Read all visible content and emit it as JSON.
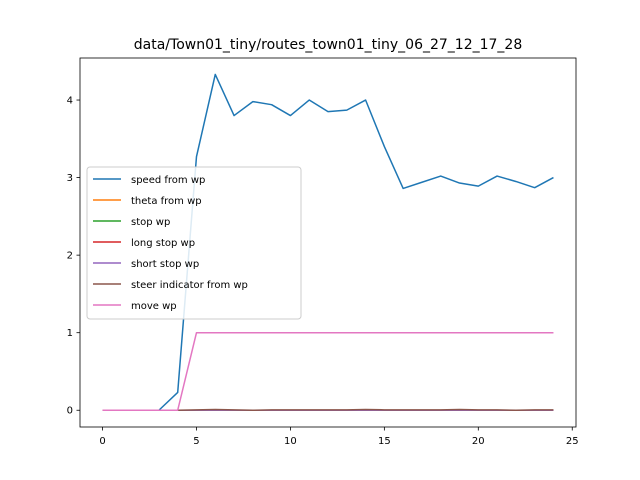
{
  "chart_data": {
    "type": "line",
    "title": "data/Town01_tiny/routes_town01_tiny_06_27_12_17_28",
    "xlabel": "",
    "ylabel": "",
    "xlim": [
      -1.2,
      25.2
    ],
    "ylim": [
      -0.216,
      4.542
    ],
    "xticks": [
      0,
      5,
      10,
      15,
      20,
      25
    ],
    "yticks": [
      0,
      1,
      2,
      3,
      4
    ],
    "grid": false,
    "legend_position": "center-left",
    "x": [
      0,
      1,
      2,
      3,
      4,
      5,
      6,
      7,
      8,
      9,
      10,
      11,
      12,
      13,
      14,
      15,
      16,
      17,
      18,
      19,
      20,
      21,
      22,
      23,
      24
    ],
    "series": [
      {
        "name": "speed from wp",
        "color": "#1f77b4",
        "values": [
          0,
          0,
          0,
          0,
          0.23,
          3.27,
          4.33,
          3.8,
          3.98,
          3.94,
          3.8,
          4.0,
          3.85,
          3.87,
          4.0,
          3.4,
          2.86,
          2.94,
          3.02,
          2.93,
          2.89,
          3.02,
          2.95,
          2.87,
          3.0
        ]
      },
      {
        "name": "theta from wp",
        "color": "#ff7f0e",
        "values": [
          0,
          0,
          0,
          0,
          0,
          0,
          0,
          0,
          0,
          0,
          0,
          0,
          0,
          0,
          0,
          0,
          0,
          0,
          0,
          0,
          0,
          0,
          0,
          0,
          0
        ]
      },
      {
        "name": "stop wp",
        "color": "#2ca02c",
        "values": [
          0,
          0,
          0,
          0,
          0,
          0,
          0,
          0,
          0,
          0,
          0,
          0,
          0,
          0,
          0,
          0,
          0,
          0,
          0,
          0,
          0,
          0,
          0,
          0,
          0
        ]
      },
      {
        "name": "long stop wp",
        "color": "#d62728",
        "values": [
          0,
          0,
          0,
          0,
          0,
          0,
          0,
          0,
          0,
          0,
          0,
          0,
          0,
          0,
          0,
          0,
          0,
          0,
          0,
          0,
          0,
          0,
          0,
          0,
          0
        ]
      },
      {
        "name": "short stop wp",
        "color": "#9467bd",
        "values": [
          0,
          0,
          0,
          0,
          0,
          0,
          0,
          0,
          0,
          0,
          0,
          0,
          0,
          0,
          0,
          0,
          0,
          0,
          0,
          0,
          0,
          0,
          0,
          0,
          0
        ]
      },
      {
        "name": "steer indicator from wp",
        "color": "#8c564b",
        "values": [
          0,
          0,
          0,
          0,
          0,
          0.005,
          0.01,
          0.005,
          0,
          0.005,
          0.005,
          0.005,
          0.005,
          0.005,
          0.01,
          0.005,
          0.005,
          0.005,
          0.005,
          0.01,
          0.005,
          0.005,
          0,
          0.005,
          0.005
        ]
      },
      {
        "name": "move wp",
        "color": "#e377c2",
        "values": [
          0,
          0,
          0,
          0,
          0,
          1,
          1,
          1,
          1,
          1,
          1,
          1,
          1,
          1,
          1,
          1,
          1,
          1,
          1,
          1,
          1,
          1,
          1,
          1,
          1
        ]
      }
    ]
  }
}
